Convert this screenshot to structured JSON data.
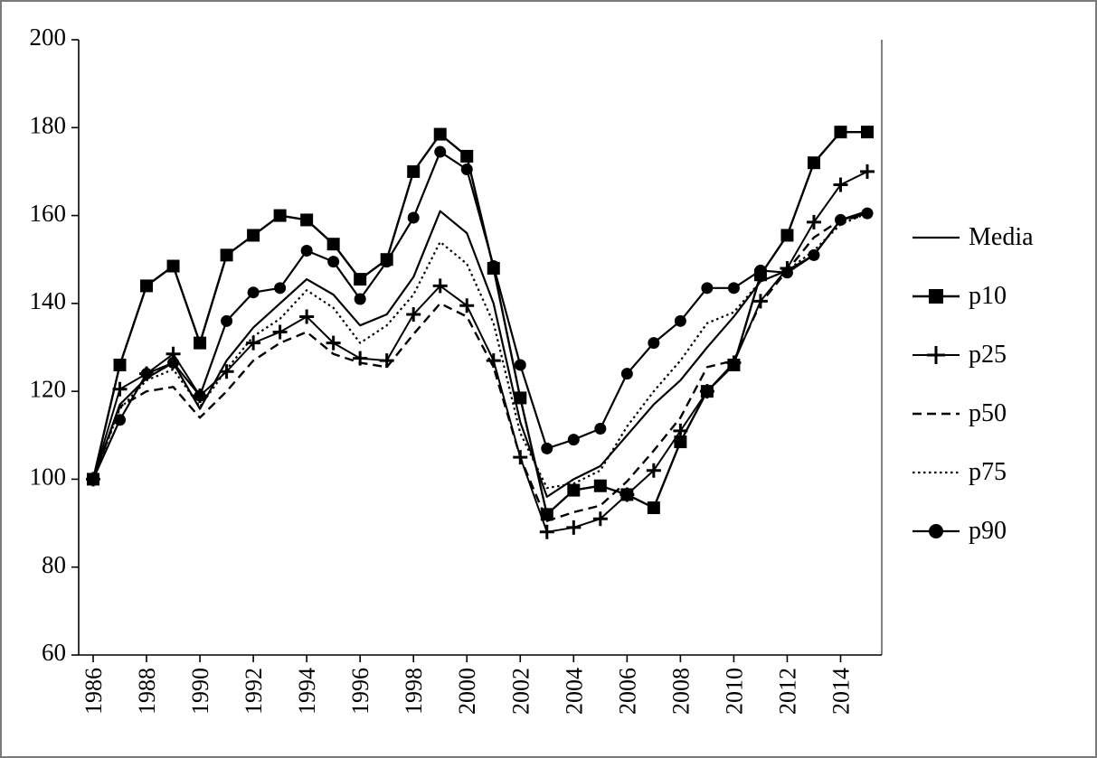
{
  "figure": {
    "background": "#ffffff",
    "border_color": "#7a7a7a",
    "line_color": "#000000"
  },
  "chart_data": {
    "type": "line",
    "title": "",
    "xlabel": "",
    "ylabel": "",
    "x": [
      1986,
      1987,
      1988,
      1989,
      1990,
      1991,
      1992,
      1993,
      1994,
      1995,
      1996,
      1997,
      1998,
      1999,
      2000,
      2001,
      2002,
      2003,
      2004,
      2005,
      2006,
      2007,
      2008,
      2009,
      2010,
      2011,
      2012,
      2013,
      2014,
      2015
    ],
    "x_tick_labels": [
      "1986",
      "1988",
      "1990",
      "1992",
      "1994",
      "1996",
      "1998",
      "2000",
      "2002",
      "2004",
      "2006",
      "2008",
      "2010",
      "2012",
      "2014"
    ],
    "ylim": [
      60,
      200
    ],
    "y_ticks": [
      60,
      80,
      100,
      120,
      140,
      160,
      180,
      200
    ],
    "grid": false,
    "legend_position": "right",
    "series": [
      {
        "name": "Media",
        "marker": "none",
        "line_style": "solid",
        "color": "#000000",
        "values": [
          100,
          117,
          123,
          126.5,
          116,
          127,
          134.5,
          140,
          145.5,
          142,
          135,
          137.5,
          146,
          161,
          156,
          140,
          113,
          96,
          100,
          103,
          110,
          117,
          122.5,
          130,
          137,
          145,
          147.5,
          151,
          159,
          161
        ]
      },
      {
        "name": "p10",
        "marker": "square",
        "line_style": "solid",
        "color": "#000000",
        "values": [
          100,
          126,
          144,
          148.5,
          131,
          151,
          155.5,
          160,
          159,
          153.5,
          145.5,
          150,
          170,
          178.5,
          173.5,
          148,
          118.5,
          92,
          97.5,
          98.5,
          96.5,
          93.5,
          108.5,
          120,
          126,
          146.5,
          155.5,
          172,
          179,
          179
        ]
      },
      {
        "name": "p25",
        "marker": "plus",
        "line_style": "solid",
        "color": "#000000",
        "values": [
          100,
          120.5,
          124,
          128.5,
          119,
          124.5,
          131,
          133.5,
          137,
          131,
          127.5,
          127,
          137.5,
          144,
          139.5,
          127,
          105,
          88,
          89,
          91,
          96.5,
          102,
          111,
          120,
          126.5,
          140.5,
          148,
          158.5,
          167,
          170
        ]
      },
      {
        "name": "p50",
        "marker": "none",
        "line_style": "dashed",
        "color": "#000000",
        "values": [
          100,
          116.5,
          120,
          121,
          114,
          120,
          127,
          131,
          133.5,
          128.5,
          126.5,
          125.5,
          133,
          140,
          137,
          125.5,
          105,
          90.5,
          92.5,
          94,
          99.5,
          106.5,
          114,
          125.5,
          127,
          140,
          147.5,
          155,
          159,
          160
        ]
      },
      {
        "name": "p75",
        "marker": "none",
        "line_style": "dotted",
        "color": "#000000",
        "values": [
          100,
          116,
          122.5,
          125,
          116.5,
          125,
          132.5,
          136.5,
          143,
          139,
          131,
          135,
          142,
          154,
          149,
          135.5,
          110.5,
          98,
          99,
          102,
          112,
          120,
          127,
          135.5,
          138,
          145,
          147.5,
          152,
          158,
          160.5
        ]
      },
      {
        "name": "p90",
        "marker": "circle",
        "line_style": "solid",
        "color": "#000000",
        "values": [
          100,
          113.5,
          124,
          126.5,
          119,
          136,
          142.5,
          143.5,
          152,
          149.5,
          141,
          149.5,
          159.5,
          174.5,
          170.5,
          148.5,
          126,
          107,
          109,
          111.5,
          124,
          131,
          136,
          143.5,
          143.5,
          147.5,
          147,
          151,
          159,
          160.5
        ]
      }
    ]
  }
}
